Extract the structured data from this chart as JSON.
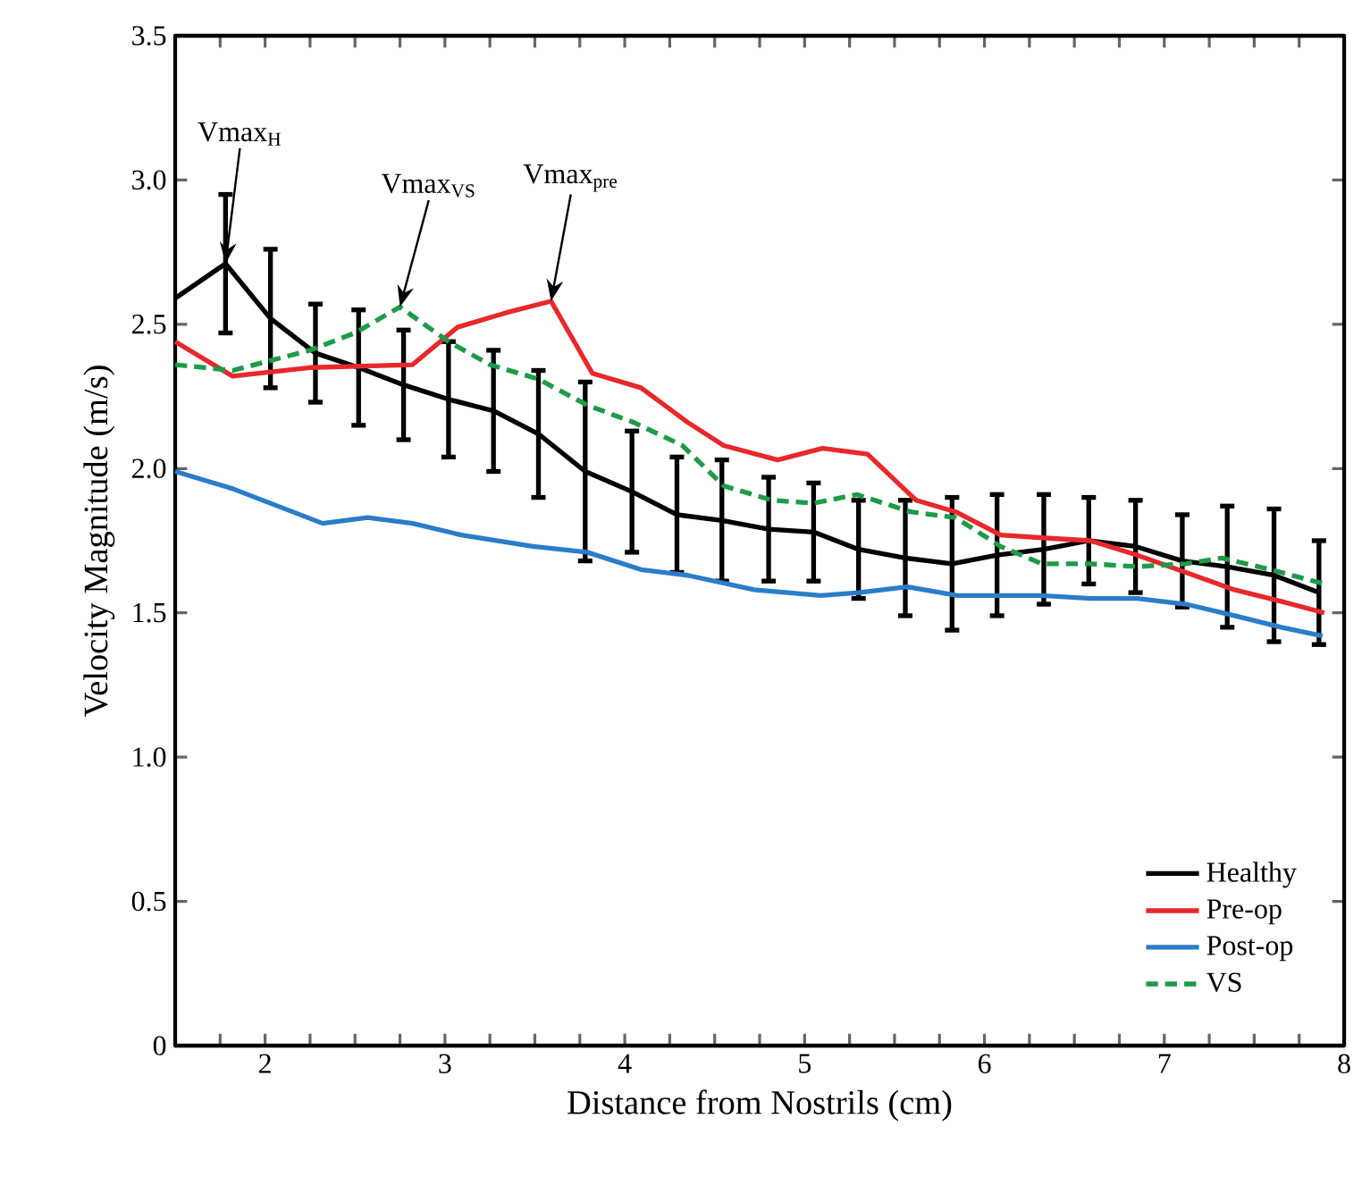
{
  "chart_data": {
    "type": "line",
    "xlabel": "Distance from Nostrils (cm)",
    "ylabel": "Velocity Magnitude (m/s)",
    "xlim": [
      1.5,
      8.0
    ],
    "ylim": [
      0,
      3.5
    ],
    "xticks": [
      {
        "value": 1.75,
        "label": null
      },
      2,
      {
        "value": 2.25,
        "label": null
      },
      {
        "value": 2.5,
        "label": null
      },
      {
        "value": 2.75,
        "label": null
      },
      3,
      {
        "value": 3.25,
        "label": null
      },
      {
        "value": 3.5,
        "label": null
      },
      {
        "value": 3.75,
        "label": null
      },
      4,
      {
        "value": 4.25,
        "label": null
      },
      {
        "value": 4.5,
        "label": null
      },
      {
        "value": 4.75,
        "label": null
      },
      5,
      {
        "value": 5.25,
        "label": null
      },
      {
        "value": 5.5,
        "label": null
      },
      {
        "value": 5.75,
        "label": null
      },
      6,
      {
        "value": 6.25,
        "label": null
      },
      {
        "value": 6.5,
        "label": null
      },
      {
        "value": 6.75,
        "label": null
      },
      7,
      {
        "value": 7.25,
        "label": null
      },
      {
        "value": 7.5,
        "label": null
      },
      {
        "value": 7.75,
        "label": null
      },
      8
    ],
    "yticks": [
      0,
      0.5,
      {
        "value": 1,
        "label": "1.0"
      },
      1.5,
      {
        "value": 2,
        "label": "2.0"
      },
      2.5,
      {
        "value": 3,
        "label": "3.0"
      },
      3.5
    ],
    "legend": "bottom right",
    "grid": false,
    "line_style": "solid",
    "annotations": [
      {
        "text": "Vmax$_{H}$",
        "x": 1.78,
        "y": 2.71
      },
      {
        "text": "Vmax$_{VS}$",
        "x": 2.75,
        "y": 2.56
      },
      {
        "text": "Vmax$_{pre}$",
        "x": 3.59,
        "y": 2.58
      }
    ],
    "series": [
      {
        "name": "Healthy",
        "color": "#000000",
        "x": [
          1.5,
          1.78,
          2.03,
          2.28,
          2.52,
          2.77,
          3.02,
          3.27,
          3.52,
          3.78,
          4.04,
          4.29,
          4.54,
          4.8,
          5.05,
          5.3,
          5.56,
          5.82,
          6.07,
          6.33,
          6.58,
          6.84,
          7.1,
          7.35,
          7.61,
          7.86
        ],
        "values": [
          2.59,
          2.71,
          2.52,
          2.4,
          2.35,
          2.29,
          2.24,
          2.2,
          2.12,
          1.99,
          1.92,
          1.84,
          1.82,
          1.79,
          1.78,
          1.72,
          1.69,
          1.67,
          1.7,
          1.72,
          1.75,
          1.73,
          1.68,
          1.66,
          1.63,
          1.57
        ],
        "errors": [
          null,
          0.24,
          0.24,
          0.17,
          0.2,
          0.19,
          0.2,
          0.21,
          0.22,
          0.31,
          0.21,
          0.2,
          0.21,
          0.18,
          0.17,
          0.17,
          0.2,
          0.23,
          0.21,
          0.19,
          0.15,
          0.16,
          0.16,
          0.21,
          0.23,
          0.18
        ]
      },
      {
        "name": "Pre-op",
        "color": "#e8282b",
        "x": [
          1.5,
          1.82,
          2.25,
          2.82,
          3.07,
          3.34,
          3.59,
          3.82,
          4.09,
          4.35,
          4.55,
          4.85,
          5.1,
          5.35,
          5.62,
          5.84,
          6.09,
          6.32,
          6.59,
          6.85,
          7.12,
          7.39,
          7.65,
          7.89
        ],
        "values": [
          2.44,
          2.32,
          2.35,
          2.36,
          2.49,
          2.54,
          2.58,
          2.33,
          2.28,
          2.16,
          2.08,
          2.03,
          2.07,
          2.05,
          1.89,
          1.85,
          1.77,
          1.76,
          1.75,
          1.7,
          1.64,
          1.58,
          1.54,
          1.5
        ]
      },
      {
        "name": "Post-op",
        "color": "#2a7dc8",
        "x": [
          1.5,
          1.82,
          2.32,
          2.57,
          2.82,
          3.09,
          3.49,
          3.79,
          4.09,
          4.35,
          4.72,
          5.09,
          5.3,
          5.57,
          5.85,
          6.32,
          6.59,
          6.85,
          7.12,
          7.39,
          7.65,
          7.88
        ],
        "values": [
          1.99,
          1.93,
          1.81,
          1.83,
          1.81,
          1.77,
          1.73,
          1.71,
          1.65,
          1.63,
          1.58,
          1.56,
          1.57,
          1.59,
          1.56,
          1.56,
          1.55,
          1.55,
          1.53,
          1.49,
          1.45,
          1.42
        ]
      },
      {
        "name": "VS",
        "color": "#1e9a48",
        "line_style": "dashed",
        "x": [
          1.5,
          1.82,
          2.25,
          2.5,
          2.75,
          3.02,
          3.25,
          3.52,
          3.79,
          4.05,
          4.32,
          4.55,
          4.82,
          5.05,
          5.29,
          5.59,
          5.84,
          6.09,
          6.32,
          6.59,
          6.85,
          7.12,
          7.32,
          7.59,
          7.89
        ],
        "values": [
          2.36,
          2.34,
          2.41,
          2.47,
          2.56,
          2.44,
          2.36,
          2.31,
          2.22,
          2.16,
          2.08,
          1.94,
          1.89,
          1.88,
          1.91,
          1.85,
          1.83,
          1.73,
          1.67,
          1.67,
          1.66,
          1.67,
          1.69,
          1.65,
          1.6
        ]
      }
    ]
  }
}
